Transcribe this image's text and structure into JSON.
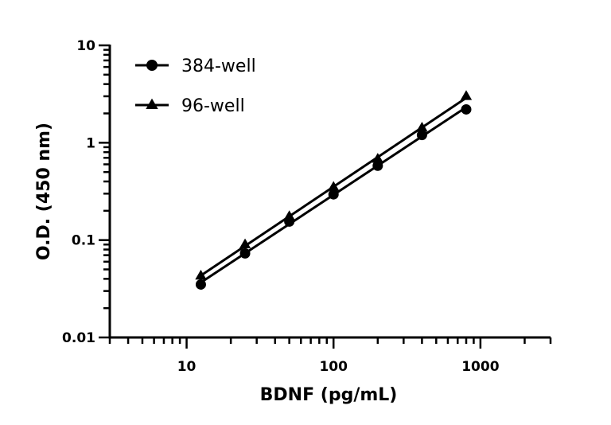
{
  "chart_data": {
    "type": "line",
    "xlabel": "BDNF (pg/mL)",
    "ylabel": "O.D. (450 nm)",
    "x_scale": "log",
    "y_scale": "log",
    "xlim": [
      3,
      3000
    ],
    "ylim": [
      0.01,
      10
    ],
    "x_ticks": [
      "10",
      "100",
      "1000"
    ],
    "y_ticks": [
      "0.01",
      "0.1",
      "1",
      "10"
    ],
    "grid": false,
    "legend_position": "top-left",
    "series": [
      {
        "name": "384-well",
        "marker": "circle",
        "x": [
          12.5,
          25,
          50,
          100,
          200,
          400,
          800
        ],
        "y": [
          0.035,
          0.073,
          0.155,
          0.295,
          0.58,
          1.2,
          2.2
        ]
      },
      {
        "name": "96-well",
        "marker": "triangle",
        "x": [
          12.5,
          25,
          50,
          100,
          200,
          400,
          800
        ],
        "y": [
          0.043,
          0.09,
          0.175,
          0.35,
          0.68,
          1.42,
          3.0
        ]
      }
    ]
  }
}
